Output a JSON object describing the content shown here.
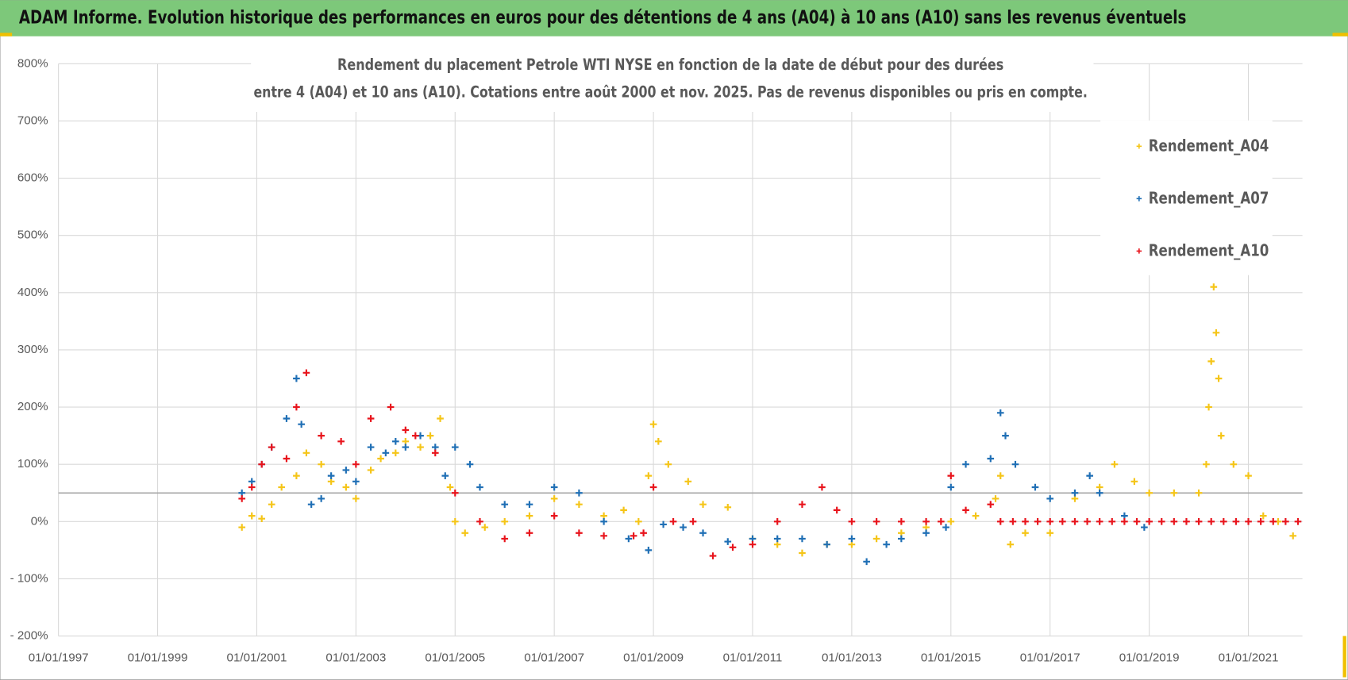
{
  "chart_data": {
    "type": "scatter",
    "header": "ADAM Informe. Evolution historique des performances en euros pour des détentions de 4 ans (A04) à 10 ans (A10) sans les revenus éventuels",
    "title": [
      "Rendement du placement Petrole WTI NYSE en fonction de la date de début pour des durées",
      "entre 4 (A04) et 10 ans (A10).  Cotations entre août 2000  et nov. 2025.  Pas de revenus disponibles ou pris en compte."
    ],
    "xlim": [
      1997,
      2022.09
    ],
    "xticks": [
      {
        "value": 1997,
        "label": "01/01/1997"
      },
      {
        "value": 1999,
        "label": "01/01/1999"
      },
      {
        "value": 2001,
        "label": "01/01/2001"
      },
      {
        "value": 2003,
        "label": "01/01/2003"
      },
      {
        "value": 2005,
        "label": "01/01/2005"
      },
      {
        "value": 2007,
        "label": "01/01/2007"
      },
      {
        "value": 2009,
        "label": "01/01/2009"
      },
      {
        "value": 2011,
        "label": "01/01/2011"
      },
      {
        "value": 2013,
        "label": "01/01/2013"
      },
      {
        "value": 2015,
        "label": "01/01/2015"
      },
      {
        "value": 2017,
        "label": "01/01/2017"
      },
      {
        "value": 2019,
        "label": "01/01/2019"
      },
      {
        "value": 2021,
        "label": "01/01/2021"
      }
    ],
    "ylim": [
      -200,
      800
    ],
    "yticks": [
      {
        "value": -200,
        "label": "- 200%"
      },
      {
        "value": -100,
        "label": "- 100%"
      },
      {
        "value": 0,
        "label": "0%"
      },
      {
        "value": 100,
        "label": "100%"
      },
      {
        "value": 200,
        "label": "200%"
      },
      {
        "value": 300,
        "label": "300%"
      },
      {
        "value": 400,
        "label": "400%"
      },
      {
        "value": 500,
        "label": "500%"
      },
      {
        "value": 600,
        "label": "600%"
      },
      {
        "value": 700,
        "label": "700%"
      },
      {
        "value": 800,
        "label": "800%"
      }
    ],
    "grid": true,
    "reference_line": 50,
    "legend": "upper right",
    "series": [
      {
        "name": "Rendement_A04",
        "color": "#f5c518",
        "x": [
          2000.7,
          2000.9,
          2001.1,
          2001.3,
          2001.5,
          2001.8,
          2002.0,
          2002.3,
          2002.5,
          2002.8,
          2003.0,
          2003.3,
          2003.5,
          2003.8,
          2004.0,
          2004.3,
          2004.5,
          2004.7,
          2004.9,
          2005.0,
          2005.2,
          2005.6,
          2006.0,
          2006.5,
          2007.0,
          2007.5,
          2008.0,
          2008.4,
          2008.7,
          2008.9,
          2009.0,
          2009.1,
          2009.3,
          2009.7,
          2010.0,
          2010.5,
          2011.0,
          2011.5,
          2012.0,
          2012.5,
          2013.0,
          2013.5,
          2014.0,
          2014.5,
          2015.0,
          2015.5,
          2015.9,
          2016.0,
          2016.2,
          2016.5,
          2017.0,
          2017.5,
          2018.0,
          2018.3,
          2018.7,
          2019.0,
          2019.5,
          2020.0,
          2020.15,
          2020.2,
          2020.25,
          2020.3,
          2020.35,
          2020.4,
          2020.45,
          2020.7,
          2021.0,
          2021.3,
          2021.6,
          2021.9
        ],
        "values": [
          -10,
          10,
          5,
          30,
          60,
          80,
          120,
          100,
          70,
          60,
          40,
          90,
          110,
          120,
          140,
          130,
          150,
          180,
          60,
          0,
          -20,
          -10,
          0,
          10,
          40,
          30,
          10,
          20,
          0,
          80,
          170,
          140,
          100,
          70,
          30,
          25,
          -30,
          -40,
          -55,
          -40,
          -40,
          -30,
          -20,
          -10,
          0,
          10,
          40,
          80,
          -40,
          -20,
          -20,
          40,
          60,
          100,
          70,
          50,
          50,
          50,
          100,
          200,
          280,
          410,
          330,
          250,
          150,
          100,
          80,
          10,
          0,
          -25
        ]
      },
      {
        "name": "Rendement_A07",
        "color": "#1f6fb5",
        "x": [
          2000.7,
          2000.9,
          2001.1,
          2001.3,
          2001.6,
          2001.8,
          2001.9,
          2002.1,
          2002.3,
          2002.5,
          2002.8,
          2003.0,
          2003.3,
          2003.6,
          2003.8,
          2004.0,
          2004.3,
          2004.6,
          2004.8,
          2005.0,
          2005.3,
          2005.5,
          2006.0,
          2006.5,
          2007.0,
          2007.5,
          2008.0,
          2008.5,
          2008.9,
          2009.2,
          2009.6,
          2010.0,
          2010.5,
          2011.0,
          2011.5,
          2012.0,
          2012.5,
          2013.0,
          2013.3,
          2013.7,
          2014.0,
          2014.5,
          2014.9,
          2015.0,
          2015.3,
          2015.8,
          2016.0,
          2016.1,
          2016.3,
          2016.7,
          2017.0,
          2017.5,
          2017.8,
          2018.0,
          2018.5,
          2018.9
        ],
        "values": [
          50,
          70,
          100,
          130,
          180,
          250,
          170,
          30,
          40,
          80,
          90,
          70,
          130,
          120,
          140,
          130,
          150,
          130,
          80,
          130,
          100,
          60,
          30,
          30,
          60,
          50,
          0,
          -30,
          -50,
          -5,
          -10,
          -20,
          -35,
          -30,
          -30,
          -30,
          -40,
          -30,
          -70,
          -40,
          -30,
          -20,
          -10,
          60,
          100,
          110,
          190,
          150,
          100,
          60,
          40,
          50,
          80,
          50,
          10,
          -10
        ]
      },
      {
        "name": "Rendement_A10",
        "color": "#e8141c",
        "x": [
          2000.7,
          2000.9,
          2001.1,
          2001.3,
          2001.6,
          2001.8,
          2002.0,
          2002.3,
          2002.7,
          2003.0,
          2003.3,
          2003.7,
          2004.0,
          2004.2,
          2004.6,
          2005.0,
          2005.5,
          2006.0,
          2006.5,
          2007.0,
          2007.5,
          2008.0,
          2008.6,
          2008.8,
          2009.0,
          2009.4,
          2009.8,
          2010.2,
          2010.6,
          2011.0,
          2011.5,
          2012.0,
          2012.4,
          2012.7,
          2013.0,
          2013.5,
          2014.0,
          2014.5,
          2014.8,
          2015.0,
          2015.3,
          2015.8,
          2016.0,
          2016.25,
          2016.5,
          2016.75,
          2017.0,
          2017.25,
          2017.5,
          2017.75,
          2018.0,
          2018.25,
          2018.5,
          2018.75,
          2019.0,
          2019.25,
          2019.5,
          2019.75,
          2020.0,
          2020.25,
          2020.5,
          2020.75,
          2021.0,
          2021.25,
          2021.5,
          2021.75,
          2022.0
        ],
        "values": [
          40,
          60,
          100,
          130,
          110,
          200,
          260,
          150,
          140,
          100,
          180,
          200,
          160,
          150,
          120,
          50,
          0,
          -30,
          -20,
          10,
          -20,
          -25,
          -25,
          -20,
          60,
          0,
          0,
          -60,
          -45,
          -40,
          0,
          30,
          60,
          20,
          0,
          0,
          0,
          0,
          0,
          80,
          20,
          30,
          0,
          0,
          0,
          0,
          0,
          0,
          0,
          0,
          0,
          0,
          0,
          0,
          0,
          0,
          0,
          0,
          0,
          0,
          0,
          0,
          0,
          0,
          0,
          0,
          0
        ]
      }
    ]
  }
}
